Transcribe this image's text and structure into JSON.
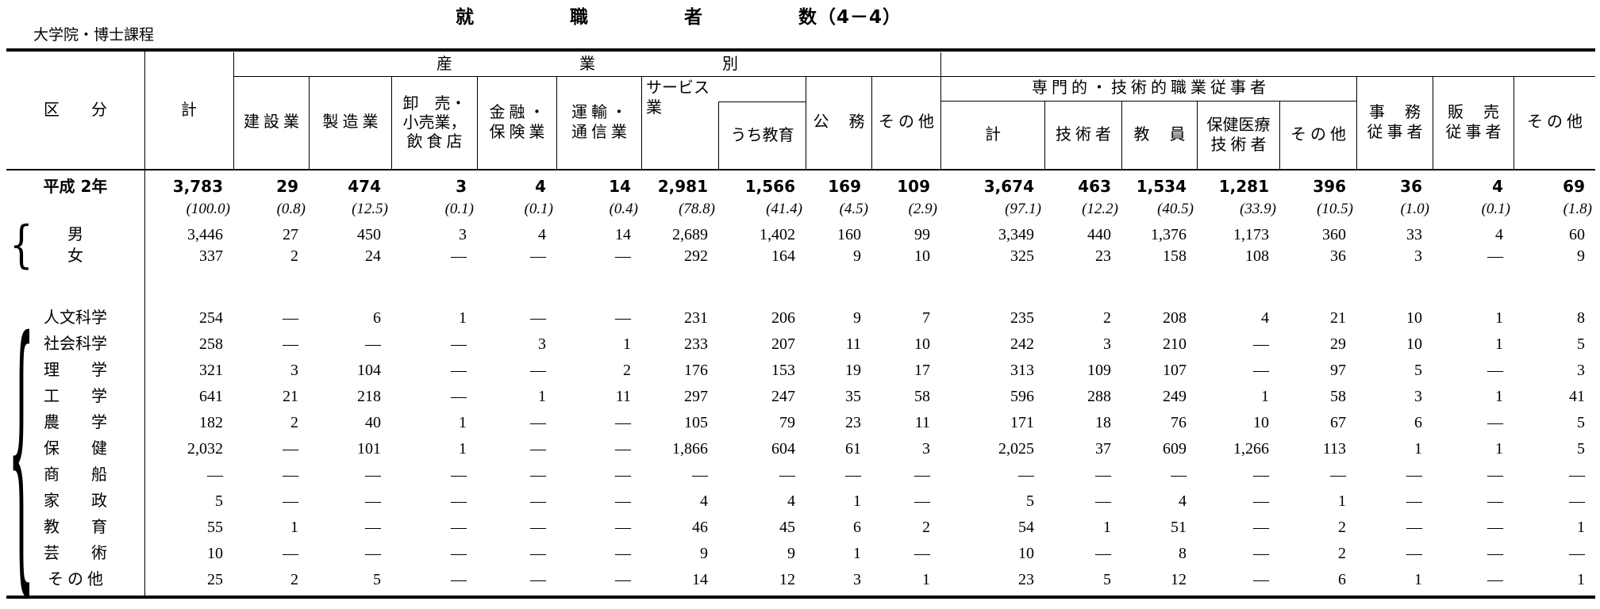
{
  "title": "就　　　　　職　　　　　者　　　　　数（4－4）",
  "subtitle": "大学院・博士課程",
  "header": {
    "kubun": "区　　分",
    "kei": "計",
    "industry_group": "産　　　　　　　　業　　　　　　　　別",
    "industry_cols": [
      "建 設 業",
      "製 造 業",
      "卸　売・\n小売業，\n飲 食 店",
      "金 融 ・\n保 険 業",
      "運 輸 ・\n通 信 業",
      "サービス\n業",
      "うち教育",
      "公　 務",
      "そ の 他"
    ],
    "prof_group": "専 門 的 ・ 技 術 的 職 業 従 事 者",
    "prof_cols": [
      "計",
      "技 術 者",
      "教　 員",
      "保健医療\n技 術 者",
      "そ の 他"
    ],
    "right_cols": [
      "事　 務\n従 事 者",
      "販　 売\n従 事 者",
      "そ の 他"
    ]
  },
  "braces": {
    "sex": "{",
    "field": "{"
  },
  "table": {
    "rows": [
      {
        "label": "平成 2年",
        "kind": "year",
        "values": [
          "3,783",
          "29",
          "474",
          "3",
          "4",
          "14",
          "2,981",
          "1,566",
          "169",
          "109",
          "3,674",
          "463",
          "1,534",
          "1,281",
          "396",
          "36",
          "4",
          "69"
        ]
      },
      {
        "label": "",
        "kind": "percent",
        "values": [
          "(100.0)",
          "(0.8)",
          "(12.5)",
          "(0.1)",
          "(0.1)",
          "(0.4)",
          "(78.8)",
          "(41.4)",
          "(4.5)",
          "(2.9)",
          "(97.1)",
          "(12.2)",
          "(40.5)",
          "(33.9)",
          "(10.5)",
          "(1.0)",
          "(0.1)",
          "(1.8)"
        ]
      },
      {
        "label": "男",
        "kind": "sex",
        "values": [
          "3,446",
          "27",
          "450",
          "3",
          "4",
          "14",
          "2,689",
          "1,402",
          "160",
          "99",
          "3,349",
          "440",
          "1,376",
          "1,173",
          "360",
          "33",
          "4",
          "60"
        ]
      },
      {
        "label": "女",
        "kind": "sex",
        "values": [
          "337",
          "2",
          "24",
          "—",
          "—",
          "—",
          "292",
          "164",
          "9",
          "10",
          "325",
          "23",
          "158",
          "108",
          "36",
          "3",
          "—",
          "9"
        ]
      },
      {
        "label": "人文科学",
        "kind": "field",
        "values": [
          "254",
          "—",
          "6",
          "1",
          "—",
          "—",
          "231",
          "206",
          "9",
          "7",
          "235",
          "2",
          "208",
          "4",
          "21",
          "10",
          "1",
          "8"
        ]
      },
      {
        "label": "社会科学",
        "kind": "field",
        "values": [
          "258",
          "—",
          "—",
          "—",
          "3",
          "1",
          "233",
          "207",
          "11",
          "10",
          "242",
          "3",
          "210",
          "—",
          "29",
          "10",
          "1",
          "5"
        ]
      },
      {
        "label": "理　　学",
        "kind": "field",
        "values": [
          "321",
          "3",
          "104",
          "—",
          "—",
          "2",
          "176",
          "153",
          "19",
          "17",
          "313",
          "109",
          "107",
          "—",
          "97",
          "5",
          "—",
          "3"
        ]
      },
      {
        "label": "工　　学",
        "kind": "field",
        "values": [
          "641",
          "21",
          "218",
          "—",
          "1",
          "11",
          "297",
          "247",
          "35",
          "58",
          "596",
          "288",
          "249",
          "1",
          "58",
          "3",
          "1",
          "41"
        ]
      },
      {
        "label": "農　　学",
        "kind": "field",
        "values": [
          "182",
          "2",
          "40",
          "1",
          "—",
          "—",
          "105",
          "79",
          "23",
          "11",
          "171",
          "18",
          "76",
          "10",
          "67",
          "6",
          "—",
          "5"
        ]
      },
      {
        "label": "保　　健",
        "kind": "field",
        "values": [
          "2,032",
          "—",
          "101",
          "1",
          "—",
          "—",
          "1,866",
          "604",
          "61",
          "3",
          "2,025",
          "37",
          "609",
          "1,266",
          "113",
          "1",
          "1",
          "5"
        ]
      },
      {
        "label": "商　　船",
        "kind": "field",
        "values": [
          "—",
          "—",
          "—",
          "—",
          "—",
          "—",
          "—",
          "—",
          "—",
          "—",
          "—",
          "—",
          "—",
          "—",
          "—",
          "—",
          "—",
          "—"
        ]
      },
      {
        "label": "家　　政",
        "kind": "field",
        "values": [
          "5",
          "—",
          "—",
          "—",
          "—",
          "—",
          "4",
          "4",
          "1",
          "—",
          "5",
          "—",
          "4",
          "—",
          "1",
          "—",
          "—",
          "—"
        ]
      },
      {
        "label": "教　　育",
        "kind": "field",
        "values": [
          "55",
          "1",
          "—",
          "—",
          "—",
          "—",
          "46",
          "45",
          "6",
          "2",
          "54",
          "1",
          "51",
          "—",
          "2",
          "—",
          "—",
          "1"
        ]
      },
      {
        "label": "芸　　術",
        "kind": "field",
        "values": [
          "10",
          "—",
          "—",
          "—",
          "—",
          "—",
          "9",
          "9",
          "1",
          "—",
          "10",
          "—",
          "8",
          "—",
          "2",
          "—",
          "—",
          "—"
        ]
      },
      {
        "label": "そ の 他",
        "kind": "field",
        "values": [
          "25",
          "2",
          "5",
          "—",
          "—",
          "—",
          "14",
          "12",
          "3",
          "1",
          "23",
          "5",
          "12",
          "—",
          "6",
          "1",
          "—",
          "1"
        ]
      }
    ]
  }
}
